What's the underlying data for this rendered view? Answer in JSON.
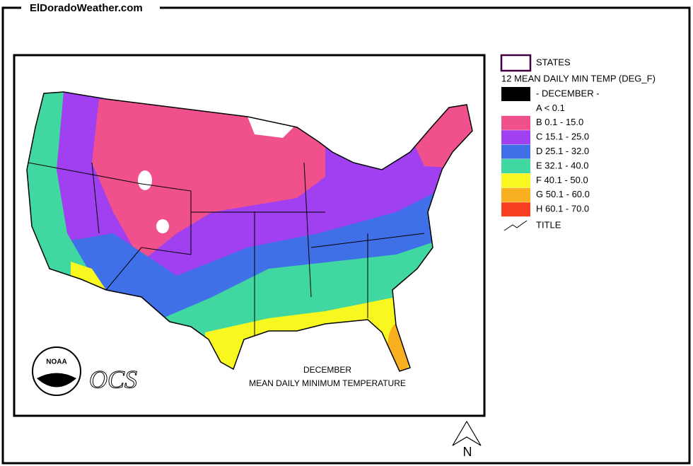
{
  "header": {
    "title": "ElDoradoWeather.com"
  },
  "legend": {
    "layer": "STATES",
    "title": "12 MEAN DAILY MIN TEMP (DEG_F)",
    "items": [
      {
        "label": "- DECEMBER -",
        "color": "#000000"
      },
      {
        "label": "A < 0.1",
        "color": "#ffffff"
      },
      {
        "label": "B 0.1 - 15.0",
        "color": "#f0508c"
      },
      {
        "label": "C 15.1 - 25.0",
        "color": "#a040f0"
      },
      {
        "label": "D 25.1 - 32.0",
        "color": "#4070e8"
      },
      {
        "label": "E 32.1 - 40.0",
        "color": "#40d8a0"
      },
      {
        "label": "F 40.1 - 50.0",
        "color": "#f8f820"
      },
      {
        "label": "G 50.1 - 60.0",
        "color": "#f8b020"
      },
      {
        "label": "H 60.1 - 70.0",
        "color": "#f84020"
      }
    ],
    "line_label": "TITLE"
  },
  "map": {
    "caption": [
      "DECEMBER",
      "MEAN DAILY MINIMUM TEMPERATURE"
    ],
    "logo": "NOAA",
    "ocs": "OCS",
    "north": "N"
  }
}
